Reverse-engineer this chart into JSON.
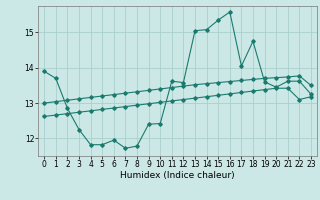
{
  "xlabel": "Humidex (Indice chaleur)",
  "ylabel": "",
  "bg_color": "#cce8e6",
  "grid_color": "#aacfce",
  "line_color": "#1a7a6e",
  "xlim": [
    -0.5,
    23.5
  ],
  "ylim": [
    11.5,
    15.75
  ],
  "yticks": [
    12,
    13,
    14,
    15
  ],
  "xticks": [
    0,
    1,
    2,
    3,
    4,
    5,
    6,
    7,
    8,
    9,
    10,
    11,
    12,
    13,
    14,
    15,
    16,
    17,
    18,
    19,
    20,
    21,
    22,
    23
  ],
  "line1_x": [
    0,
    1,
    2,
    3,
    4,
    5,
    6,
    7,
    8,
    9,
    10,
    11,
    12,
    13,
    14,
    15,
    16,
    17,
    18,
    19,
    20,
    21,
    22,
    23
  ],
  "line1_y": [
    13.9,
    13.7,
    12.85,
    12.25,
    11.82,
    11.82,
    11.95,
    11.72,
    11.78,
    12.4,
    12.42,
    13.62,
    13.58,
    15.05,
    15.08,
    15.35,
    15.58,
    14.05,
    14.75,
    13.6,
    13.45,
    13.62,
    13.62,
    13.25
  ],
  "line2_x": [
    0,
    1,
    2,
    3,
    4,
    5,
    6,
    7,
    8,
    9,
    10,
    11,
    12,
    13,
    14,
    15,
    16,
    17,
    18,
    19,
    20,
    21,
    22,
    23
  ],
  "line2_y": [
    13.0,
    13.04,
    13.08,
    13.12,
    13.16,
    13.2,
    13.24,
    13.28,
    13.32,
    13.36,
    13.4,
    13.44,
    13.48,
    13.52,
    13.55,
    13.58,
    13.61,
    13.64,
    13.67,
    13.7,
    13.72,
    13.74,
    13.77,
    13.5
  ],
  "line3_x": [
    0,
    1,
    2,
    3,
    4,
    5,
    6,
    7,
    8,
    9,
    10,
    11,
    12,
    13,
    14,
    15,
    16,
    17,
    18,
    19,
    20,
    21,
    22,
    23
  ],
  "line3_y": [
    12.62,
    12.66,
    12.7,
    12.74,
    12.78,
    12.82,
    12.86,
    12.9,
    12.94,
    12.98,
    13.02,
    13.06,
    13.1,
    13.14,
    13.18,
    13.22,
    13.26,
    13.3,
    13.34,
    13.38,
    13.42,
    13.42,
    13.1,
    13.18
  ]
}
